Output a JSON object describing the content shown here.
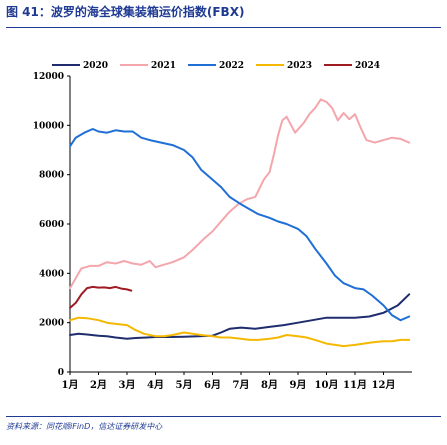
{
  "header": {
    "figure_title": "图 41：波罗的海全球集装箱运价指数(FBX)"
  },
  "footer": {
    "source": "资料来源：同花顺iFinD，信达证券研发中心"
  },
  "chart_data": {
    "type": "line",
    "title": "",
    "xlabel": "",
    "ylabel": "",
    "categories": [
      "1月",
      "2月",
      "3月",
      "4月",
      "5月",
      "6月",
      "7月",
      "8月",
      "9月",
      "10月",
      "11月",
      "12月"
    ],
    "xlim": [
      1,
      13
    ],
    "ylim": [
      0,
      12000
    ],
    "yticks": [
      0,
      2000,
      4000,
      6000,
      8000,
      10000,
      12000
    ],
    "legend": "top",
    "grid": false,
    "series": [
      {
        "name": "2020",
        "color": "#1f2d6e",
        "x": [
          1.0,
          1.3,
          1.6,
          2.0,
          2.3,
          2.6,
          3.0,
          3.3,
          3.7,
          4.0,
          4.5,
          5.0,
          5.5,
          6.0,
          6.3,
          6.6,
          7.0,
          7.5,
          8.0,
          8.5,
          9.0,
          9.5,
          10.0,
          10.5,
          11.0,
          11.5,
          12.0,
          12.5,
          12.9
        ],
        "y": [
          1500,
          1550,
          1520,
          1470,
          1450,
          1400,
          1350,
          1380,
          1400,
          1420,
          1420,
          1430,
          1450,
          1470,
          1600,
          1750,
          1800,
          1750,
          1830,
          1900,
          2000,
          2100,
          2200,
          2200,
          2200,
          2250,
          2400,
          2700,
          3150
        ]
      },
      {
        "name": "2021",
        "color": "#f4a6ac",
        "x": [
          1.0,
          1.2,
          1.4,
          1.7,
          2.0,
          2.3,
          2.6,
          2.9,
          3.2,
          3.5,
          3.8,
          4.0,
          4.3,
          4.6,
          5.0,
          5.3,
          5.7,
          6.0,
          6.3,
          6.6,
          6.9,
          7.2,
          7.5,
          7.8,
          8.0,
          8.15,
          8.3,
          8.45,
          8.6,
          8.9,
          9.2,
          9.4,
          9.6,
          9.8,
          10.0,
          10.2,
          10.4,
          10.6,
          10.8,
          11.0,
          11.2,
          11.4,
          11.7,
          12.0,
          12.3,
          12.6,
          12.9
        ],
        "y": [
          3400,
          3800,
          4200,
          4300,
          4300,
          4450,
          4400,
          4500,
          4400,
          4350,
          4500,
          4250,
          4350,
          4450,
          4650,
          4950,
          5400,
          5700,
          6100,
          6500,
          6800,
          7000,
          7100,
          7800,
          8100,
          8800,
          9600,
          10200,
          10350,
          9700,
          10100,
          10450,
          10700,
          11050,
          10950,
          10700,
          10200,
          10500,
          10250,
          10450,
          9900,
          9400,
          9300,
          9400,
          9500,
          9450,
          9300
        ]
      },
      {
        "name": "2022",
        "color": "#1f6fd6",
        "x": [
          1.0,
          1.2,
          1.5,
          1.8,
          2.0,
          2.3,
          2.6,
          2.9,
          3.2,
          3.5,
          3.8,
          4.2,
          4.6,
          5.0,
          5.3,
          5.6,
          6.0,
          6.3,
          6.6,
          7.0,
          7.3,
          7.6,
          8.0,
          8.3,
          8.6,
          9.0,
          9.3,
          9.6,
          10.0,
          10.3,
          10.6,
          11.0,
          11.3,
          11.6,
          12.0,
          12.3,
          12.6,
          12.9
        ],
        "y": [
          9150,
          9500,
          9700,
          9850,
          9750,
          9700,
          9800,
          9750,
          9750,
          9500,
          9400,
          9300,
          9200,
          9000,
          8700,
          8200,
          7800,
          7500,
          7100,
          6800,
          6600,
          6400,
          6250,
          6100,
          6000,
          5800,
          5500,
          5000,
          4400,
          3900,
          3600,
          3400,
          3350,
          3100,
          2700,
          2300,
          2100,
          2250
        ]
      },
      {
        "name": "2023",
        "color": "#f5b800",
        "x": [
          1.0,
          1.3,
          1.6,
          2.0,
          2.3,
          2.6,
          3.0,
          3.3,
          3.6,
          4.0,
          4.3,
          4.6,
          5.0,
          5.3,
          5.6,
          6.0,
          6.3,
          6.6,
          7.0,
          7.3,
          7.6,
          8.0,
          8.3,
          8.6,
          9.0,
          9.3,
          9.6,
          10.0,
          10.3,
          10.6,
          11.0,
          11.3,
          11.6,
          12.0,
          12.3,
          12.6,
          12.9
        ],
        "y": [
          2100,
          2200,
          2180,
          2100,
          2000,
          1950,
          1900,
          1700,
          1550,
          1450,
          1450,
          1500,
          1600,
          1550,
          1500,
          1450,
          1400,
          1400,
          1350,
          1300,
          1300,
          1350,
          1400,
          1500,
          1450,
          1400,
          1300,
          1150,
          1100,
          1050,
          1100,
          1150,
          1200,
          1250,
          1250,
          1300,
          1300
        ]
      },
      {
        "name": "2024",
        "color": "#a01c24",
        "x": [
          1.0,
          1.2,
          1.4,
          1.6,
          1.8,
          2.0,
          2.2,
          2.4,
          2.6,
          2.8,
          3.0,
          3.15
        ],
        "y": [
          2600,
          2800,
          3150,
          3400,
          3450,
          3420,
          3430,
          3400,
          3450,
          3380,
          3350,
          3300
        ]
      }
    ]
  }
}
